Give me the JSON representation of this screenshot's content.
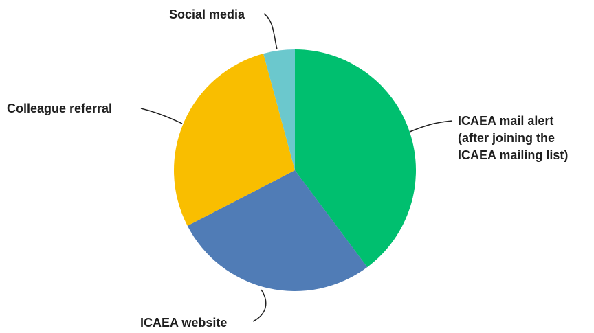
{
  "chart_data": {
    "type": "pie",
    "title": "",
    "start_angle_deg": 0,
    "direction": "clockwise",
    "slices": [
      {
        "label": [
          "ICAEA mail alert",
          "(after joining the",
          "ICAEA mailing list)"
        ],
        "value": 39.8,
        "color": "#00BF6F"
      },
      {
        "label": [
          "ICAEA website"
        ],
        "value": 27.6,
        "color": "#507CB6"
      },
      {
        "label": [
          "Colleague referral"
        ],
        "value": 28.4,
        "color": "#F9BE00"
      },
      {
        "label": [
          "Social media"
        ],
        "value": 4.2,
        "color": "#6BC8CD"
      }
    ]
  }
}
